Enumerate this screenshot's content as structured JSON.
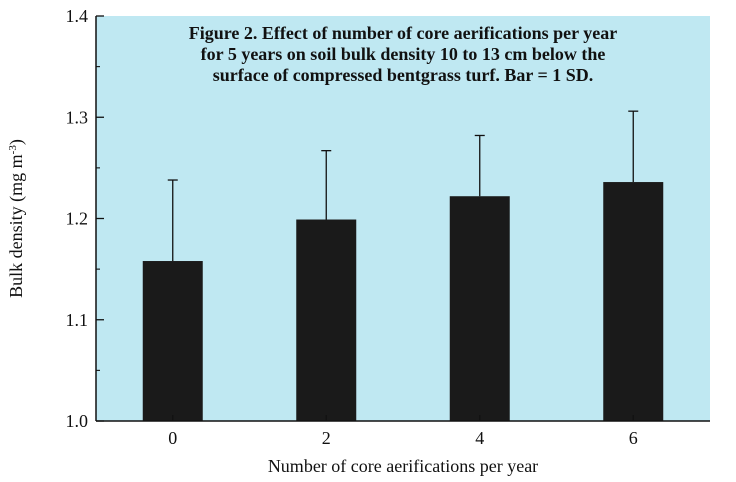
{
  "chart_data": {
    "type": "bar",
    "title_lines": [
      "Figure 2. Effect of number of core aerifications per year",
      "for 5 years on soil bulk density 10 to 13 cm below the",
      "surface of compressed bentgrass turf. Bar = 1 SD."
    ],
    "xlabel": "Number of core aerifications per year",
    "ylabel": "Bulk density (mg m",
    "ylabel_sup": "-3",
    "ylabel_close": ")",
    "categories": [
      "0",
      "2",
      "4",
      "6"
    ],
    "values": [
      1.158,
      1.199,
      1.222,
      1.236
    ],
    "sd_upper": [
      1.238,
      1.267,
      1.282,
      1.306
    ],
    "ylim": [
      1.0,
      1.4
    ],
    "yticks": [
      1.0,
      1.1,
      1.2,
      1.3,
      1.4
    ],
    "ytick_labels": [
      "1.0",
      "1.1",
      "1.2",
      "1.3",
      "1.4"
    ],
    "colors": {
      "plot_bg": "#bfe8f2",
      "bar": "#1a1a1a",
      "axis": "#111111"
    },
    "grid": false,
    "legend": "none"
  }
}
